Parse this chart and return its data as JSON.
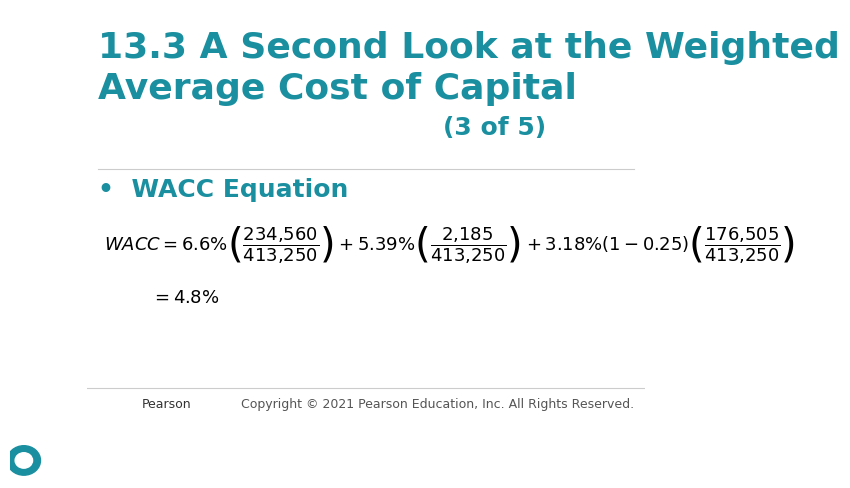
{
  "title_main": "13.3 A Second Look at the Weighted\nAverage Cost of Capital",
  "title_suffix": " (3 of 5)",
  "title_color": "#1a8fa0",
  "title_fontsize": 26,
  "bullet_text": "WACC Equation",
  "bullet_color": "#1a8fa0",
  "bullet_fontsize": 18,
  "equation_fontsize": 13,
  "eq_color": "#000000",
  "footer_right": "Copyright © 2021 Pearson Education, Inc. All Rights Reserved.",
  "footer_color": "#555555",
  "footer_fontsize": 9,
  "bg_color": "#ffffff",
  "pearson_logo_color": "#1a8fa0"
}
